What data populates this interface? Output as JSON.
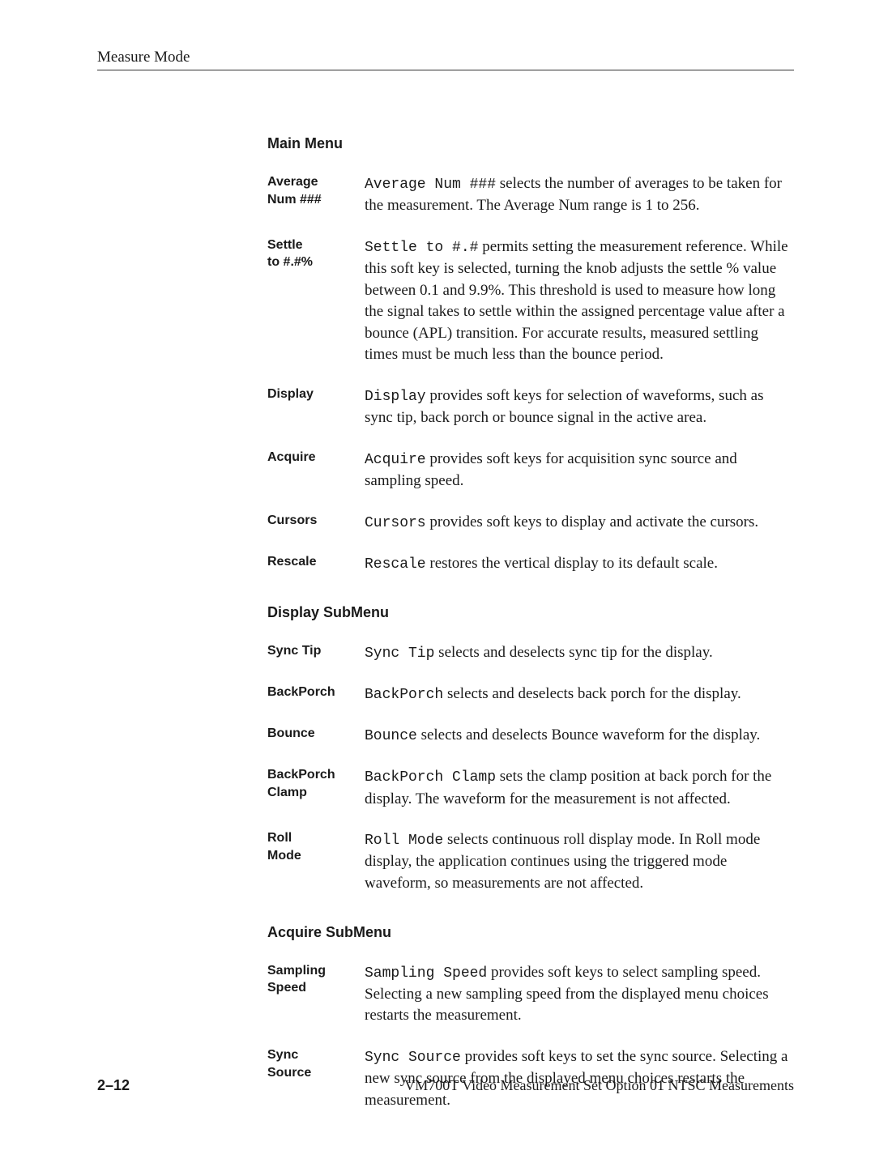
{
  "header": {
    "title": "Measure Mode"
  },
  "sections": [
    {
      "heading": "Main Menu",
      "items": [
        {
          "label": "Average\nNum ###",
          "desc_html": "<span class='mono'>Average Num ###</span> selects the number of averages to be taken for the measurement. The Average Num range is 1 to 256."
        },
        {
          "label": "Settle\nto #.#%",
          "desc_html": "<span class='mono'>Settle to #.#</span> permits setting the measurement reference. While this soft key is selected, turning the knob adjusts the settle % value between 0.1 and 9.9%. This threshold is used to measure how long the signal takes to settle within the assigned percentage value after a bounce (APL) transition. For accurate results, measured settling times must be much less than the bounce period."
        },
        {
          "label": "Display",
          "desc_html": "<span class='mono'>Display</span> provides soft keys for selection of waveforms, such as sync tip, back porch or bounce signal in the active area."
        },
        {
          "label": "Acquire",
          "desc_html": "<span class='mono'>Acquire</span> provides soft keys for acquisition sync source and sampling speed."
        },
        {
          "label": "Cursors",
          "desc_html": "<span class='mono'>Cursors</span> provides soft keys to display and activate the cursors."
        },
        {
          "label": "Rescale",
          "desc_html": "<span class='mono'>Rescale</span> restores the vertical display to its default scale."
        }
      ]
    },
    {
      "heading": "Display SubMenu",
      "items": [
        {
          "label": "Sync Tip",
          "desc_html": "<span class='mono'>Sync Tip</span> selects and deselects sync tip for the display."
        },
        {
          "label": "BackPorch",
          "desc_html": "<span class='mono'>BackPorch</span> selects and deselects back porch for the display."
        },
        {
          "label": "Bounce",
          "desc_html": "<span class='mono'>Bounce</span> selects and deselects Bounce waveform for the display."
        },
        {
          "label": "BackPorch\nClamp",
          "desc_html": "<span class='mono'>BackPorch Clamp</span> sets the clamp position at back porch for the display. The waveform for the measurement is not affected."
        },
        {
          "label": "Roll\nMode",
          "desc_html": "<span class='mono'>Roll Mode</span> selects continuous roll display mode. In Roll mode display, the application continues using the triggered mode waveform, so measurements are not affected."
        }
      ]
    },
    {
      "heading": "Acquire SubMenu",
      "items": [
        {
          "label": "Sampling\nSpeed",
          "desc_html": "<span class='mono'>Sampling Speed</span> provides soft keys to select sampling speed. Selecting a new sampling speed from the displayed menu choices restarts the measurement."
        },
        {
          "label": "Sync\nSource",
          "desc_html": "<span class='mono'>Sync Source</span> provides soft keys to set the sync source. Selecting a new sync source from the displayed menu choices restarts the measurement."
        }
      ]
    }
  ],
  "footer": {
    "page_num": "2–12",
    "text": "VM700T Video Measurement Set Option 01 NTSC Measurements"
  }
}
